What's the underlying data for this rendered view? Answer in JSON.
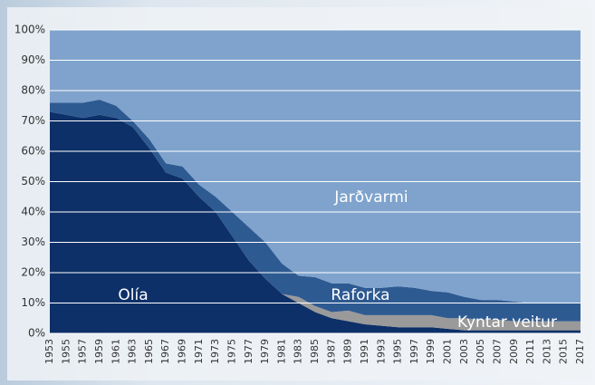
{
  "chart_data": {
    "type": "stacked_area",
    "categories": [
      "1953",
      "1955",
      "1957",
      "1959",
      "1961",
      "1963",
      "1965",
      "1967",
      "1969",
      "1971",
      "1973",
      "1975",
      "1977",
      "1979",
      "1981",
      "1983",
      "1985",
      "1987",
      "1989",
      "1991",
      "1993",
      "1995",
      "1997",
      "1999",
      "2001",
      "2003",
      "2005",
      "2007",
      "2009",
      "2011",
      "2013",
      "2015",
      "2017"
    ],
    "series": [
      {
        "name": "Olía",
        "color": "#0d3068",
        "values": [
          73,
          72,
          71,
          72,
          71,
          68,
          61,
          53,
          51,
          45,
          40,
          32,
          24,
          18,
          13,
          10,
          7,
          5,
          4,
          3,
          2.5,
          2,
          2,
          2,
          1.5,
          1,
          1,
          1,
          1,
          1,
          1,
          1,
          1
        ]
      },
      {
        "name": "Kyntar veitur",
        "color": "#9a9a9a",
        "values": [
          0,
          0,
          0,
          0,
          0,
          0,
          0,
          0,
          0,
          0,
          0,
          0,
          0,
          0,
          0,
          2,
          2,
          2,
          3.5,
          3,
          3.5,
          4,
          4,
          4,
          3.5,
          4,
          3.5,
          3.5,
          3,
          3,
          3,
          3,
          3
        ]
      },
      {
        "name": "Raforka",
        "color": "#2e5a92",
        "values": [
          3,
          4,
          5,
          5,
          4,
          2,
          3,
          3,
          4,
          4,
          5,
          8,
          11,
          12,
          10,
          7,
          9.5,
          9.5,
          9,
          9,
          9,
          9.5,
          9,
          8,
          8.5,
          7,
          6.5,
          6.5,
          6.5,
          6,
          6,
          6,
          6
        ]
      },
      {
        "name": "Jarðvarmi",
        "color": "#7fa3cc",
        "values": [
          24,
          24,
          24,
          23,
          25,
          30,
          36,
          44,
          45,
          51,
          55,
          60,
          65,
          70,
          77,
          81,
          81.5,
          83.5,
          83.5,
          85,
          85,
          84.5,
          85,
          86,
          86.5,
          88,
          89,
          89,
          89.5,
          90,
          90,
          90,
          90
        ]
      }
    ],
    "ylim": [
      0,
      100
    ],
    "yticks": [
      {
        "value": 0,
        "label": "0%"
      },
      {
        "value": 10,
        "label": "10%"
      },
      {
        "value": 20,
        "label": "20%"
      },
      {
        "value": 30,
        "label": "30%"
      },
      {
        "value": 40,
        "label": "40%"
      },
      {
        "value": 50,
        "label": "50%"
      },
      {
        "value": 60,
        "label": "60%"
      },
      {
        "value": 70,
        "label": "70%"
      },
      {
        "value": 80,
        "label": "80%"
      },
      {
        "value": 90,
        "label": "90%"
      },
      {
        "value": 100,
        "label": "100%"
      }
    ],
    "grid": true
  }
}
